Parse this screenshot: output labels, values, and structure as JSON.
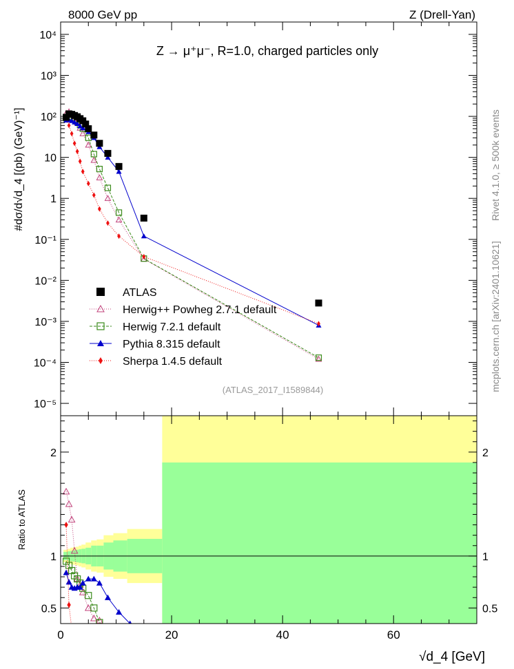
{
  "header": {
    "energy": "8000 GeV pp",
    "process": "Z (Drell-Yan)",
    "title": "Z → μ⁺μ⁻, R=1.0, charged particles only",
    "analysis": "(ATLAS_2017_I1589844)",
    "side_rivet": "Rivet 4.1.0, ≥ 500k events",
    "side_mcplots": "mcplots.cern.ch [arXiv:2401.10621]"
  },
  "axes": {
    "main_ylabel": "#dσ/d√d_4 [(pb) (GeV)⁻¹]",
    "ratio_ylabel": "Ratio to ATLAS",
    "xlabel": "√d_4 [GeV]",
    "x_ticks": [
      "0",
      "20",
      "40",
      "60"
    ],
    "y_ticks_main": [
      "10⁻⁵",
      "10⁻⁴",
      "10⁻³",
      "10⁻²",
      "10⁻¹",
      "1",
      "10",
      "10²",
      "10³",
      "10⁴"
    ],
    "y_ticks_ratio": [
      "0.5",
      "1",
      "2"
    ]
  },
  "legend": [
    {
      "label": "ATLAS",
      "color": "#000000",
      "marker": "square-filled"
    },
    {
      "label": "Herwig++ Powheg 2.7.1 default",
      "color": "#c0407a",
      "marker": "triangle-open"
    },
    {
      "label": "Herwig 7.2.1 default",
      "color": "#3a8a1a",
      "marker": "square-open"
    },
    {
      "label": "Pythia 8.315 default",
      "color": "#0000cc",
      "marker": "triangle-filled"
    },
    {
      "label": "Sherpa 1.4.5 default",
      "color": "#ee1111",
      "marker": "diamond-filled"
    }
  ],
  "chart_data": {
    "type": "scatter",
    "xlim": [
      0,
      75
    ],
    "ylim_main": [
      5e-06,
      20000
    ],
    "ylim_ratio": [
      0.35,
      2.35
    ],
    "yscale": "log",
    "data": {
      "name": "ATLAS",
      "x": [
        1.0,
        1.5,
        2.0,
        2.5,
        3.0,
        3.5,
        4.0,
        4.5,
        5.0,
        6.0,
        7.0,
        8.5,
        10.5,
        15.0,
        46.5
      ],
      "y": [
        95,
        115,
        112,
        105,
        98,
        88,
        78,
        65,
        50,
        35,
        22,
        12.5,
        6,
        0.33,
        0.0028
      ]
    },
    "series": [
      {
        "name": "Herwig++ Powheg 2.7.1 default",
        "x": [
          1.0,
          1.5,
          2.0,
          2.5,
          3.0,
          3.5,
          4.0,
          5.0,
          6.0,
          7.0,
          8.5,
          10.5,
          15.0,
          46.5
        ],
        "y": [
          120,
          130,
          110,
          90,
          70,
          52,
          38,
          20,
          8.5,
          3.2,
          1.0,
          0.3,
          0.033,
          0.00012
        ]
      },
      {
        "name": "Herwig 7.2.1 default",
        "x": [
          1.0,
          1.5,
          2.0,
          2.5,
          3.0,
          3.5,
          4.0,
          5.0,
          6.0,
          7.0,
          8.5,
          10.5,
          15.0,
          46.5
        ],
        "y": [
          90,
          100,
          95,
          85,
          75,
          62,
          50,
          30,
          12,
          5.2,
          1.8,
          0.45,
          0.034,
          0.00013
        ]
      },
      {
        "name": "Pythia 8.315 default",
        "x": [
          1.0,
          1.5,
          2.0,
          2.5,
          3.0,
          3.5,
          4.0,
          5.0,
          6.0,
          7.0,
          8.5,
          10.5,
          15.0,
          46.5
        ],
        "y": [
          80,
          82,
          78,
          72,
          66,
          58,
          52,
          42,
          30,
          18,
          10,
          4.5,
          0.12,
          0.0008
        ]
      },
      {
        "name": "Sherpa 1.4.5 default",
        "x": [
          1.0,
          1.5,
          2.0,
          2.5,
          3.0,
          3.5,
          4.0,
          5.0,
          6.0,
          7.0,
          8.5,
          10.5,
          15.0,
          46.5
        ],
        "y": [
          90,
          60,
          38,
          22,
          14,
          8,
          4.5,
          2.3,
          1.2,
          0.55,
          0.25,
          0.12,
          0.038,
          0.00088
        ]
      }
    ],
    "ratio": {
      "band_x": [
        0.5,
        1.25,
        1.75,
        2.25,
        2.75,
        3.25,
        3.75,
        4.5,
        5.5,
        6.5,
        7.75,
        9.5,
        12.0,
        18.3,
        75
      ],
      "band_inner": [
        0.04,
        0.045,
        0.05,
        0.055,
        0.06,
        0.065,
        0.07,
        0.08,
        0.1,
        0.1,
        0.13,
        0.15,
        0.165,
        0.9
      ],
      "band_outer": [
        0.06,
        0.07,
        0.08,
        0.085,
        0.09,
        0.1,
        0.11,
        0.13,
        0.15,
        0.16,
        0.2,
        0.22,
        0.26,
        1.45
      ],
      "series": [
        {
          "name": "Herwig++ Powheg 2.7.1 default",
          "x": [
            1.0,
            1.5,
            2.0,
            2.5,
            3.0,
            3.5,
            4.0,
            5.0,
            6.0,
            7.0
          ],
          "y": [
            1.62,
            1.5,
            1.35,
            1.05,
            0.78,
            0.72,
            0.65,
            0.5,
            0.4,
            0.38
          ]
        },
        {
          "name": "Herwig 7.2.1 default",
          "x": [
            1.0,
            1.5,
            2.0,
            2.5,
            3.0,
            3.5,
            4.0,
            5.0,
            6.0,
            7.0,
            8.5
          ],
          "y": [
            0.95,
            0.91,
            0.86,
            0.81,
            0.78,
            0.74,
            0.69,
            0.62,
            0.5,
            0.36,
            0.3
          ]
        },
        {
          "name": "Pythia 8.315 default",
          "x": [
            1.0,
            1.5,
            2.0,
            2.5,
            3.0,
            3.5,
            4.0,
            5.0,
            6.0,
            7.0,
            8.5,
            10.5,
            12.5
          ],
          "y": [
            0.84,
            0.75,
            0.7,
            0.69,
            0.7,
            0.7,
            0.74,
            0.78,
            0.78,
            0.74,
            0.6,
            0.46,
            0.35
          ]
        },
        {
          "name": "Sherpa 1.4.5 default",
          "x": [
            1.0,
            1.5,
            2.0,
            2.5
          ],
          "y": [
            1.3,
            0.53,
            0.3,
            0.2
          ]
        }
      ]
    }
  }
}
